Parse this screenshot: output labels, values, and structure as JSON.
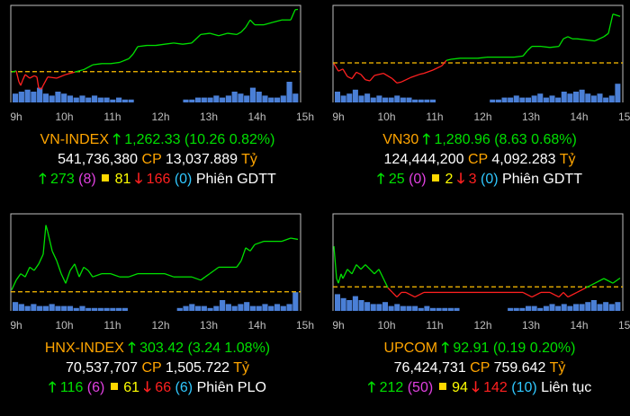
{
  "time_labels": [
    "9h",
    "10h",
    "11h",
    "12h",
    "13h",
    "14h",
    "15h"
  ],
  "colors": {
    "up": "#00e000",
    "down": "#ff2020",
    "ref": "#ffc000",
    "volume": "#4a7fd6",
    "unchanged": "#ffd800",
    "ceiling": "#e040e0",
    "floor": "#30c8ff",
    "name": "#ffa500",
    "frame": "#bfbfbf"
  },
  "panels": [
    {
      "name": "VN-INDEX",
      "value": "1,262.33",
      "change": "(10.26 0.82%)",
      "volume": "541,736,380",
      "cp_label": "CP",
      "value_traded": "13,037.889",
      "unit": "Tỷ",
      "up_count": "273",
      "ceiling_count": "(8)",
      "unchanged_count": "81",
      "down_count": "166",
      "floor_count": "(0)",
      "session": "Phiên GDTT",
      "chart_data": {
        "type": "line",
        "reference": 1252.07,
        "x": [
          0,
          5,
          8,
          10,
          12,
          15,
          20,
          25,
          28,
          30,
          33,
          35,
          40,
          50,
          60,
          70,
          80,
          90,
          100,
          110,
          120,
          130,
          135,
          140,
          150,
          160,
          170,
          180,
          190,
          200,
          210,
          220,
          230,
          240,
          250,
          255,
          260,
          265,
          270,
          280,
          290,
          300,
          310,
          315,
          318
        ],
        "y": [
          1252.0,
          1252.2,
          1250.4,
          1249.8,
          1250.6,
          1251.6,
          1251.0,
          1251.4,
          1251.2,
          1249.4,
          1249.2,
          1249.8,
          1251.2,
          1251.0,
          1251.6,
          1252.0,
          1252.4,
          1253.2,
          1253.4,
          1253.4,
          1253.6,
          1254.2,
          1255.0,
          1256.2,
          1256.4,
          1256.4,
          1256.6,
          1256.8,
          1256.6,
          1256.8,
          1258.2,
          1258.4,
          1258.0,
          1258.4,
          1258.2,
          1258.6,
          1259.4,
          1260.6,
          1259.8,
          1259.8,
          1260.2,
          1260.6,
          1260.6,
          1262.3,
          1262.33
        ],
        "ylim": [
          1247,
          1263
        ],
        "volume_levels": [
          4,
          5,
          6,
          5,
          7,
          4,
          3,
          5,
          4,
          3,
          2,
          3,
          2,
          3,
          2,
          2,
          1,
          2,
          1,
          1,
          0,
          0,
          0,
          0,
          0,
          0,
          0,
          0,
          1,
          1,
          2,
          2,
          2,
          3,
          2,
          3,
          5,
          4,
          3,
          7,
          5,
          3,
          2,
          2,
          3,
          10,
          4
        ]
      }
    },
    {
      "name": "VN30",
      "value": "1,280.96",
      "change": "(8.63 0.68%)",
      "volume": "124,444,200",
      "cp_label": "CP",
      "value_traded": "4,092.283",
      "unit": "Tỷ",
      "up_count": "25",
      "ceiling_count": "(0)",
      "unchanged_count": "2",
      "down_count": "3",
      "floor_count": "(0)",
      "session": "Phiên GDTT",
      "chart_data": {
        "type": "line",
        "reference": 1272.33,
        "x": [
          0,
          5,
          10,
          15,
          20,
          25,
          30,
          35,
          40,
          45,
          55,
          65,
          70,
          75,
          85,
          95,
          100,
          110,
          120,
          125,
          130,
          140,
          150,
          160,
          170,
          180,
          190,
          200,
          210,
          215,
          220,
          230,
          240,
          250,
          255,
          260,
          265,
          270,
          280,
          290,
          300,
          305,
          310,
          318
        ],
        "y": [
          1272.2,
          1270.8,
          1271.2,
          1269.8,
          1269.4,
          1270.6,
          1270.2,
          1269.2,
          1269.0,
          1270.0,
          1270.4,
          1269.4,
          1268.6,
          1268.8,
          1269.6,
          1270.2,
          1270.4,
          1271.0,
          1271.8,
          1272.8,
          1273.0,
          1273.2,
          1273.2,
          1273.2,
          1273.4,
          1273.4,
          1273.4,
          1273.4,
          1273.6,
          1274.6,
          1275.4,
          1275.4,
          1275.2,
          1275.4,
          1276.8,
          1277.2,
          1276.8,
          1276.8,
          1276.6,
          1276.4,
          1277.2,
          1277.8,
          1281.4,
          1280.96
        ],
        "ylim": [
          1265,
          1283
        ],
        "volume_levels": [
          5,
          3,
          4,
          6,
          3,
          4,
          2,
          3,
          2,
          2,
          3,
          2,
          2,
          1,
          1,
          1,
          1,
          0,
          0,
          0,
          0,
          0,
          0,
          0,
          0,
          0,
          1,
          1,
          2,
          2,
          3,
          2,
          2,
          3,
          4,
          2,
          3,
          2,
          5,
          4,
          5,
          6,
          4,
          3,
          4,
          2,
          3,
          9
        ]
      }
    },
    {
      "name": "HNX-INDEX",
      "value": "303.42",
      "change": "(3.24 1.08%)",
      "volume": "70,537,707",
      "cp_label": "CP",
      "value_traded": "1,505.722",
      "unit": "Tỷ",
      "up_count": "116",
      "ceiling_count": "(6)",
      "unchanged_count": "61",
      "down_count": "66",
      "floor_count": "(6)",
      "session": "Phiên PLO",
      "chart_data": {
        "type": "line",
        "reference": 300.18,
        "x": [
          0,
          5,
          10,
          15,
          20,
          25,
          30,
          35,
          38,
          40,
          45,
          50,
          55,
          60,
          65,
          70,
          75,
          80,
          85,
          90,
          100,
          110,
          120,
          130,
          140,
          150,
          160,
          170,
          180,
          190,
          200,
          210,
          215,
          220,
          225,
          230,
          240,
          250,
          255,
          260,
          265,
          270,
          280,
          290,
          300,
          310,
          318
        ],
        "y": [
          300.3,
          300.9,
          301.3,
          301.1,
          301.7,
          301.5,
          301.9,
          302.5,
          304.3,
          303.9,
          302.7,
          302.1,
          301.3,
          300.7,
          301.5,
          301.9,
          301.1,
          301.7,
          301.5,
          301.1,
          301.3,
          301.3,
          301.1,
          301.1,
          301.3,
          301.3,
          301.3,
          301.3,
          301.1,
          301.1,
          301.1,
          300.9,
          301.1,
          301.3,
          301.5,
          301.7,
          301.7,
          301.7,
          302.1,
          302.9,
          302.7,
          303.1,
          303.3,
          303.3,
          303.3,
          303.5,
          303.42
        ],
        "ylim": [
          299,
          305
        ],
        "volume_levels": [
          4,
          3,
          2,
          3,
          2,
          2,
          3,
          2,
          2,
          2,
          1,
          2,
          1,
          1,
          1,
          1,
          1,
          1,
          1,
          0,
          0,
          0,
          0,
          0,
          0,
          0,
          0,
          1,
          2,
          3,
          2,
          2,
          1,
          2,
          5,
          3,
          2,
          3,
          4,
          2,
          2,
          3,
          2,
          3,
          2,
          3,
          9
        ]
      }
    },
    {
      "name": "UPCOM",
      "value": "92.91",
      "change": "(0.19 0.20%)",
      "volume": "76,424,731",
      "cp_label": "CP",
      "value_traded": "759.642",
      "unit": "Tỷ",
      "up_count": "212",
      "ceiling_count": "(50)",
      "unchanged_count": "94",
      "down_count": "142",
      "floor_count": "(10)",
      "session": "Liên tục",
      "chart_data": {
        "type": "line",
        "reference": 92.72,
        "x": [
          0,
          3,
          5,
          8,
          10,
          15,
          20,
          25,
          30,
          35,
          40,
          45,
          50,
          55,
          60,
          65,
          70,
          75,
          80,
          90,
          100,
          110,
          120,
          130,
          140,
          150,
          160,
          170,
          180,
          190,
          200,
          210,
          220,
          230,
          240,
          250,
          255,
          260,
          270,
          280,
          290,
          300,
          310,
          318
        ],
        "y": [
          93.6,
          92.9,
          92.8,
          93.0,
          92.9,
          93.1,
          93.0,
          93.2,
          93.1,
          93.2,
          93.1,
          93.0,
          93.1,
          92.9,
          92.7,
          92.6,
          92.5,
          92.6,
          92.6,
          92.5,
          92.6,
          92.6,
          92.6,
          92.6,
          92.6,
          92.6,
          92.6,
          92.6,
          92.6,
          92.6,
          92.6,
          92.6,
          92.5,
          92.6,
          92.6,
          92.5,
          92.6,
          92.5,
          92.6,
          92.7,
          92.8,
          92.9,
          92.8,
          92.91
        ],
        "ylim": [
          92.2,
          94.3
        ],
        "volume_levels": [
          8,
          6,
          5,
          7,
          5,
          4,
          3,
          3,
          4,
          2,
          3,
          2,
          2,
          2,
          1,
          2,
          1,
          1,
          1,
          1,
          1,
          0,
          0,
          0,
          0,
          0,
          0,
          0,
          0,
          1,
          1,
          1,
          2,
          2,
          1,
          2,
          3,
          2,
          3,
          2,
          3,
          3,
          4,
          5,
          3,
          4,
          3,
          4
        ]
      }
    }
  ]
}
